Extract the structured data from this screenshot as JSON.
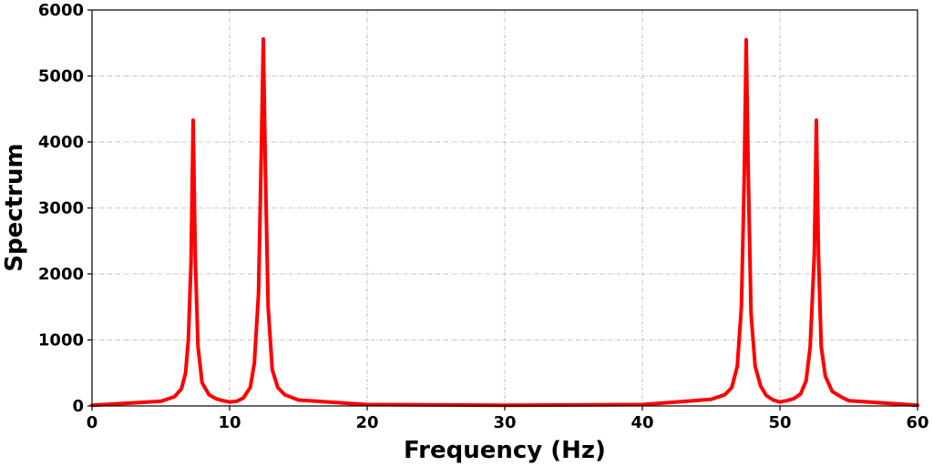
{
  "chart_data": {
    "type": "line",
    "title": "",
    "xlabel": "Frequency (Hz)",
    "ylabel": "Spectrum",
    "xlim": [
      0,
      60
    ],
    "ylim": [
      0,
      6000
    ],
    "x_ticks": [
      "0",
      "10",
      "20",
      "30",
      "40",
      "50",
      "60"
    ],
    "y_ticks": [
      "0",
      "1000",
      "2000",
      "3000",
      "4000",
      "5000",
      "6000"
    ],
    "grid": true,
    "legend": "none",
    "series": [
      {
        "color": "#ff0000",
        "x": [
          0,
          5,
          6,
          6.5,
          6.8,
          7,
          7.2,
          7.35,
          7.5,
          7.7,
          8,
          8.5,
          9,
          9.5,
          10,
          10.5,
          11,
          11.5,
          11.8,
          12.1,
          12.3,
          12.45,
          12.6,
          12.8,
          13.1,
          13.5,
          14,
          15,
          20,
          30,
          40,
          45,
          46,
          46.5,
          46.9,
          47.2,
          47.4,
          47.55,
          47.7,
          47.9,
          48.2,
          48.6,
          49,
          49.5,
          50,
          50.5,
          51,
          51.5,
          51.9,
          52.2,
          52.5,
          52.65,
          52.8,
          53,
          53.3,
          53.8,
          54.5,
          55,
          60
        ],
        "y": [
          10,
          70,
          140,
          260,
          500,
          1000,
          2200,
          4330,
          2300,
          900,
          350,
          170,
          110,
          80,
          60,
          70,
          120,
          280,
          650,
          1700,
          3800,
          5560,
          3600,
          1500,
          550,
          280,
          170,
          90,
          20,
          10,
          20,
          100,
          170,
          280,
          600,
          1500,
          3400,
          5550,
          3500,
          1400,
          600,
          300,
          160,
          90,
          60,
          80,
          110,
          180,
          380,
          900,
          2300,
          4330,
          2300,
          900,
          450,
          220,
          130,
          80,
          10
        ]
      }
    ]
  }
}
